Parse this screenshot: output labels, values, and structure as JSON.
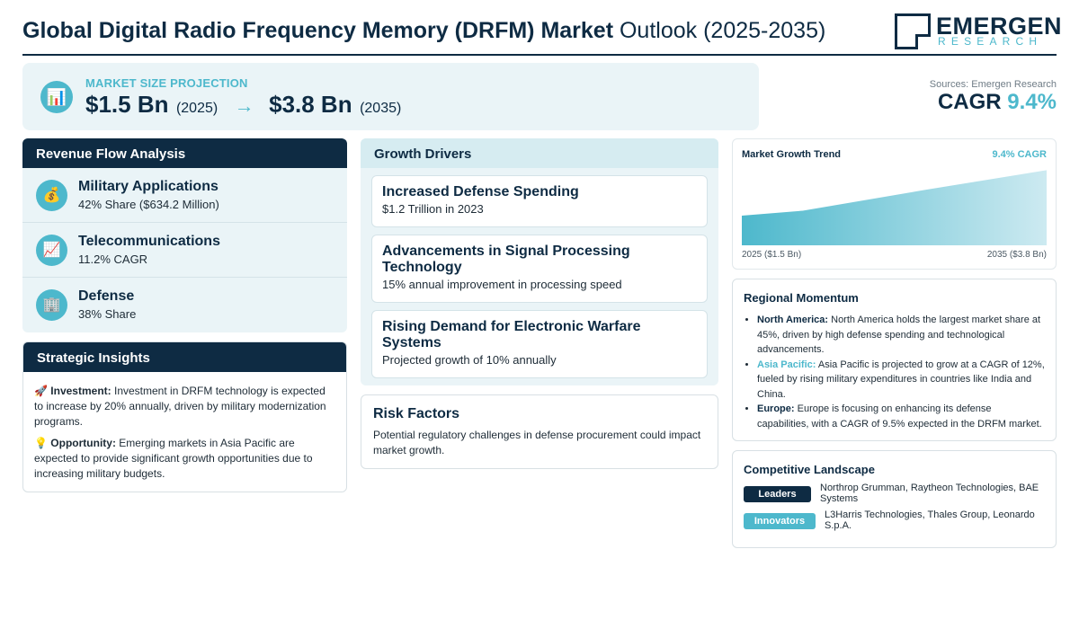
{
  "header": {
    "title_bold": "Global Digital Radio Frequency Memory (DRFM) Market",
    "title_light": "Outlook (2025-2035)",
    "logo_name": "EMERGEN",
    "logo_sub": "RESEARCH"
  },
  "projection": {
    "icon": "chart-icon",
    "label": "MARKET SIZE PROJECTION",
    "start_value": "$1.5 Bn",
    "start_year": "(2025)",
    "arrow": "→",
    "end_value": "$3.8 Bn",
    "end_year": "(2035)"
  },
  "summary": {
    "sources": "Sources: Emergen Research",
    "cagr_label": "CAGR",
    "cagr_value": "9.4%"
  },
  "revenue": {
    "title": "Revenue Flow Analysis",
    "items": [
      {
        "icon": "money-bag-icon",
        "title": "Military Applications",
        "sub": "42% Share ($634.2 Million)"
      },
      {
        "icon": "trend-chart-icon",
        "title": "Telecommunications",
        "sub": "11.2% CAGR"
      },
      {
        "icon": "building-icon",
        "title": "Defense",
        "sub": "38% Share"
      }
    ]
  },
  "insights": {
    "title": "Strategic Insights",
    "items": [
      {
        "icon": "rocket-icon",
        "label": "Investment:",
        "text": "Investment in DRFM technology is expected to increase by 20% annually, driven by military modernization programs."
      },
      {
        "icon": "lightbulb-icon",
        "label": "Opportunity:",
        "text": "Emerging markets in Asia Pacific are expected to provide significant growth opportunities due to increasing military budgets."
      }
    ]
  },
  "drivers": {
    "title": "Growth Drivers",
    "items": [
      {
        "title": "Increased Defense Spending",
        "sub": "$1.2 Trillion in 2023"
      },
      {
        "title": "Advancements in Signal Processing Technology",
        "sub": "15% annual improvement in processing speed"
      },
      {
        "title": "Rising Demand for Electronic Warfare Systems",
        "sub": "Projected growth of 10% annually"
      }
    ]
  },
  "risk": {
    "title": "Risk Factors",
    "text": "Potential regulatory challenges in defense procurement could impact market growth."
  },
  "trend": {
    "title": "Market Growth Trend",
    "cagr": "9.4% CAGR",
    "start_label": "2025 ($1.5 Bn)",
    "end_label": "2035 ($3.8 Bn)"
  },
  "chart_data": {
    "type": "area",
    "x": [
      2025,
      2027,
      2031,
      2035
    ],
    "values": [
      1.5,
      1.75,
      2.8,
      3.8
    ],
    "xlabel": "",
    "ylabel": "",
    "ylim": [
      0,
      4
    ],
    "grid": false,
    "color": "#4db8cc"
  },
  "regional": {
    "title": "Regional Momentum",
    "items": [
      {
        "name": "North America:",
        "text": "North America holds the largest market share at 45%, driven by high defense spending and technological advancements."
      },
      {
        "name": "Asia Pacific:",
        "text": "Asia Pacific is projected to grow at a CAGR of 12%, fueled by rising military expenditures in countries like India and China."
      },
      {
        "name": "Europe:",
        "text": "Europe is focusing on enhancing its defense capabilities, with a CAGR of 9.5% expected in the DRFM market."
      }
    ]
  },
  "competitive": {
    "title": "Competitive Landscape",
    "leaders_label": "Leaders",
    "leaders_text": "Northrop Grumman, Raytheon Technologies, BAE Systems",
    "innovators_label": "Innovators",
    "innovators_text": "L3Harris Technologies, Thales Group, Leonardo S.p.A."
  },
  "colors": {
    "navy": "#0e2b43",
    "teal": "#4db8cc",
    "panel": "#eaf4f7"
  }
}
